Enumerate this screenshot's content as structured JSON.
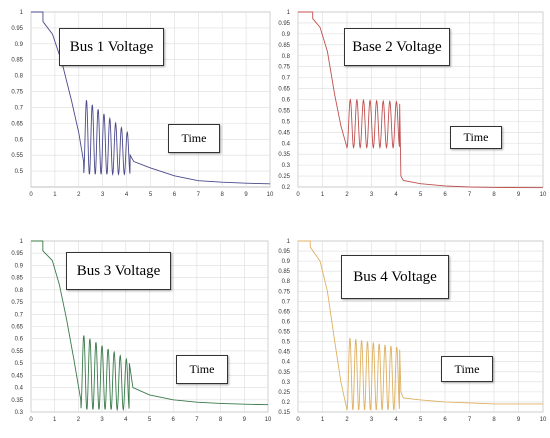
{
  "chart_data": [
    {
      "type": "line",
      "title": "Bus 1 Voltage",
      "xlabel": "Time",
      "ylabel": "",
      "color": "#4a4a8c",
      "xlim": [
        0,
        10
      ],
      "ylim": [
        0.45,
        1.0
      ],
      "grid": true,
      "xticks": [
        "0",
        "1",
        "2",
        "3",
        "4",
        "5",
        "6",
        "7",
        "8",
        "9",
        "10"
      ],
      "yticks": [
        "1",
        "0.95",
        "0.9",
        "0.85",
        "0.8",
        "0.75",
        "0.7",
        "0.65",
        "0.6",
        "0.55",
        "0.5"
      ],
      "series": [
        {
          "values": [
            [
              0,
              1.0
            ],
            [
              0.5,
              1.0
            ],
            [
              0.5,
              0.97
            ],
            [
              0.9,
              0.93
            ],
            [
              1.3,
              0.84
            ],
            [
              1.7,
              0.72
            ],
            [
              2.0,
              0.62
            ],
            [
              2.2,
              0.53
            ],
            [
              4.15,
              0.55
            ],
            [
              4.3,
              0.53
            ],
            [
              5,
              0.51
            ],
            [
              6,
              0.485
            ],
            [
              7,
              0.47
            ],
            [
              8,
              0.465
            ],
            [
              9,
              0.462
            ],
            [
              10,
              0.46
            ]
          ]
        }
      ],
      "oscillation": {
        "start": 2.2,
        "end": 4.15,
        "hi_start": 0.73,
        "hi_end": 0.615,
        "lo": 0.49,
        "cycles": 8
      }
    },
    {
      "type": "line",
      "title": "Base 2 Voltage",
      "xlabel": "Time",
      "ylabel": "",
      "color": "#c05050",
      "xlim": [
        0,
        10
      ],
      "ylim": [
        0.2,
        1.0
      ],
      "grid": true,
      "xticks": [
        "0",
        "1",
        "2",
        "3",
        "4",
        "5",
        "6",
        "7",
        "8",
        "9",
        "10"
      ],
      "yticks": [
        "1",
        "0.95",
        "0.9",
        "0.85",
        "0.8",
        "0.75",
        "0.7",
        "0.65",
        "0.6",
        "0.55",
        "0.5",
        "0.45",
        "0.4",
        "0.35",
        "0.3",
        "0.25",
        "0.2"
      ],
      "series": [
        {
          "values": [
            [
              0,
              1.0
            ],
            [
              0.6,
              1.0
            ],
            [
              0.6,
              0.97
            ],
            [
              0.9,
              0.93
            ],
            [
              1.2,
              0.82
            ],
            [
              1.5,
              0.62
            ],
            [
              1.75,
              0.48
            ],
            [
              2.0,
              0.38
            ],
            [
              4.15,
              0.58
            ],
            [
              4.2,
              0.25
            ],
            [
              4.3,
              0.23
            ],
            [
              5,
              0.215
            ],
            [
              6,
              0.205
            ],
            [
              7,
              0.2
            ],
            [
              8,
              0.198
            ],
            [
              10,
              0.197
            ]
          ]
        }
      ],
      "oscillation": {
        "start": 2.0,
        "end": 4.15,
        "hi_start": 0.6,
        "hi_end": 0.59,
        "lo": 0.38,
        "cycles": 8
      }
    },
    {
      "type": "line",
      "title": "Bus 3 Voltage",
      "xlabel": "Time",
      "ylabel": "",
      "color": "#3a7a4a",
      "xlim": [
        0,
        10
      ],
      "ylim": [
        0.3,
        1.0
      ],
      "grid": true,
      "xticks": [
        "0",
        "1",
        "2",
        "3",
        "4",
        "5",
        "6",
        "7",
        "8",
        "9",
        "10"
      ],
      "yticks": [
        "1",
        "0.95",
        "0.9",
        "0.85",
        "0.8",
        "0.75",
        "0.7",
        "0.65",
        "0.6",
        "0.55",
        "0.5",
        "0.45",
        "0.4",
        "0.35",
        "0.3"
      ],
      "series": [
        {
          "values": [
            [
              0,
              1.0
            ],
            [
              0.5,
              1.0
            ],
            [
              0.5,
              0.96
            ],
            [
              0.9,
              0.92
            ],
            [
              1.2,
              0.82
            ],
            [
              1.5,
              0.68
            ],
            [
              1.8,
              0.52
            ],
            [
              2.1,
              0.35
            ],
            [
              4.15,
              0.5
            ],
            [
              4.3,
              0.4
            ],
            [
              5,
              0.37
            ],
            [
              6,
              0.35
            ],
            [
              7,
              0.34
            ],
            [
              8,
              0.335
            ],
            [
              9,
              0.332
            ],
            [
              10,
              0.33
            ]
          ]
        }
      ],
      "oscillation": {
        "start": 2.1,
        "end": 4.15,
        "hi_start": 0.62,
        "hi_end": 0.51,
        "lo": 0.31,
        "cycles": 8
      }
    },
    {
      "type": "line",
      "title": "Bus 4 Voltage",
      "xlabel": "Time",
      "ylabel": "",
      "color": "#e0b060",
      "xlim": [
        0,
        10
      ],
      "ylim": [
        0.15,
        1.0
      ],
      "grid": true,
      "xticks": [
        "0",
        "1",
        "2",
        "3",
        "4",
        "5",
        "6",
        "7",
        "8",
        "9",
        "10"
      ],
      "yticks": [
        "1",
        "0.95",
        "0.9",
        "0.85",
        "0.8",
        "0.75",
        "0.7",
        "0.65",
        "0.6",
        "0.55",
        "0.5",
        "0.45",
        "0.4",
        "0.35",
        "0.3",
        "0.25",
        "0.2",
        "0.15"
      ],
      "series": [
        {
          "values": [
            [
              0,
              1.0
            ],
            [
              0.5,
              1.0
            ],
            [
              0.5,
              0.97
            ],
            [
              0.9,
              0.9
            ],
            [
              1.2,
              0.75
            ],
            [
              1.5,
              0.5
            ],
            [
              1.75,
              0.3
            ],
            [
              2.0,
              0.16
            ],
            [
              4.15,
              0.46
            ],
            [
              4.2,
              0.25
            ],
            [
              4.3,
              0.22
            ],
            [
              5,
              0.21
            ],
            [
              6,
              0.2
            ],
            [
              7,
              0.195
            ],
            [
              8,
              0.19
            ],
            [
              10,
              0.19
            ]
          ]
        }
      ],
      "oscillation": {
        "start": 2.0,
        "end": 4.15,
        "hi_start": 0.52,
        "hi_end": 0.47,
        "lo": 0.16,
        "cycles": 9
      }
    }
  ]
}
